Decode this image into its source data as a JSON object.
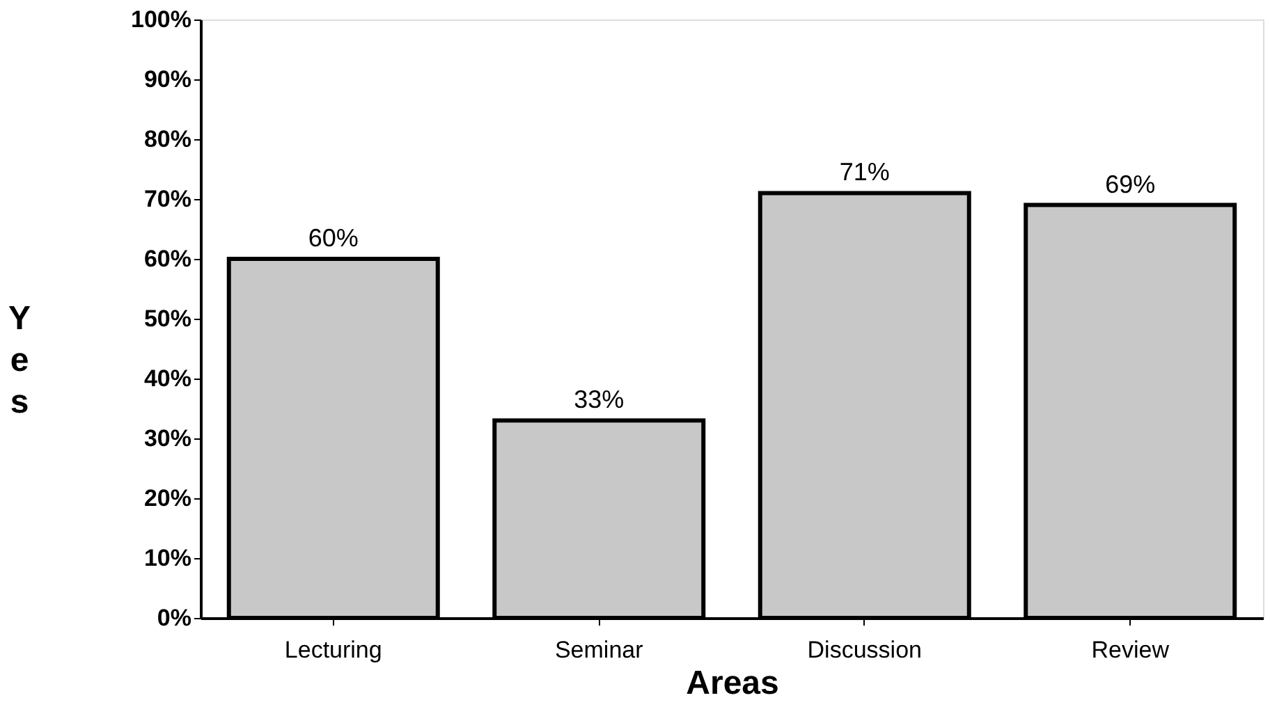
{
  "chart_data": {
    "type": "bar",
    "xlabel": "Areas",
    "ylabel": "Yes",
    "categories": [
      "Lecturing",
      "Seminar",
      "Discussion",
      "Review"
    ],
    "values": [
      60,
      33,
      71,
      69
    ],
    "color": "#c8c8c8",
    "value_labels": [
      "60%",
      "33%",
      "71%",
      "69%"
    ],
    "ylim": [
      0,
      100
    ],
    "yticks": [
      {
        "value": 0,
        "label": "0%"
      },
      {
        "value": 10,
        "label": "10%"
      },
      {
        "value": 20,
        "label": "20%"
      },
      {
        "value": 30,
        "label": "30%"
      },
      {
        "value": 40,
        "label": "40%"
      },
      {
        "value": 50,
        "label": "50%"
      },
      {
        "value": 60,
        "label": "60%"
      },
      {
        "value": 70,
        "label": "70%"
      },
      {
        "value": 80,
        "label": "80%"
      },
      {
        "value": 90,
        "label": "90%"
      },
      {
        "value": 100,
        "label": "100%"
      }
    ],
    "grid": false
  }
}
